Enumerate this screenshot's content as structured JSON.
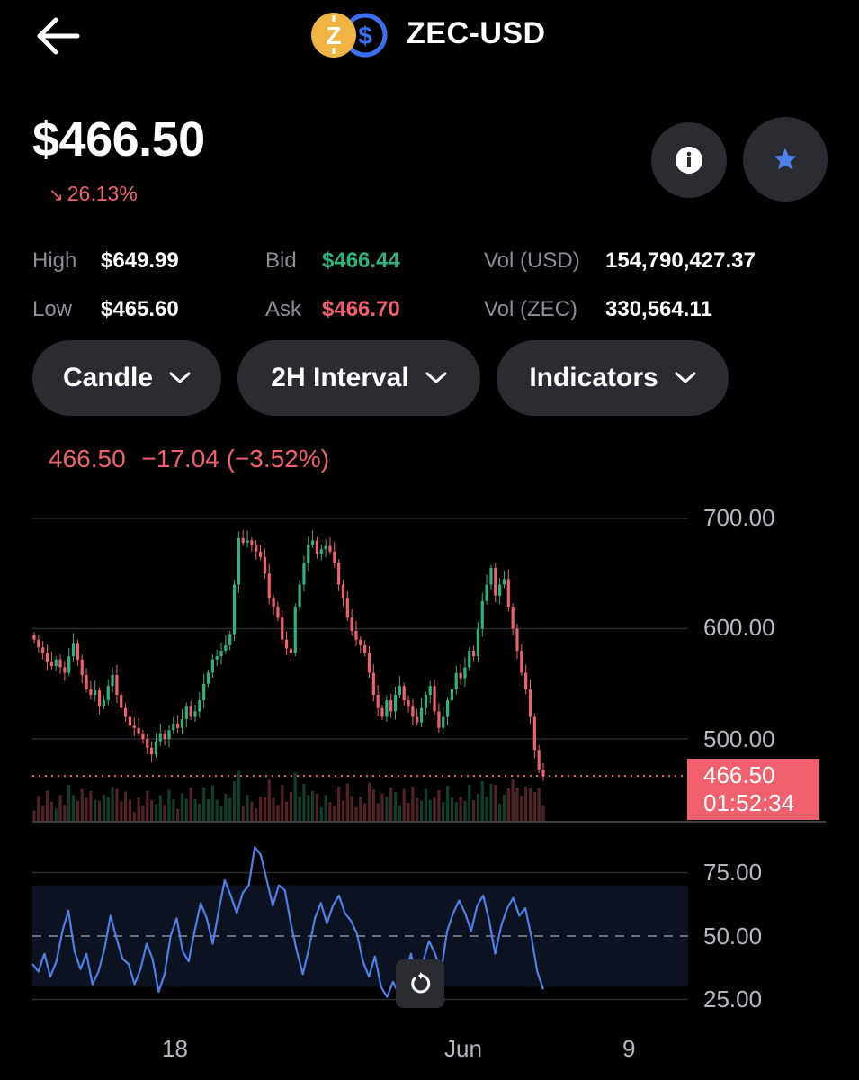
{
  "header": {
    "pair": "ZEC-USD",
    "base_icon": "zcash-coin-icon",
    "quote_icon": "usd-coin-icon"
  },
  "price": {
    "value": "$466.50",
    "change": "26.13%",
    "change_direction": "down"
  },
  "stats": {
    "high_label": "High",
    "high": "$649.99",
    "low_label": "Low",
    "low": "$465.60",
    "bid_label": "Bid",
    "bid": "$466.44",
    "ask_label": "Ask",
    "ask": "$466.70",
    "vol_usd_label": "Vol (USD)",
    "vol_usd": "154,790,427.37",
    "vol_zec_label": "Vol (ZEC)",
    "vol_zec": "330,564.11"
  },
  "controls": {
    "chart_type": "Candle",
    "interval": "2H Interval",
    "indicators": "Indicators"
  },
  "chart_header": {
    "last": "466.50",
    "change": "−17.04 (−3.52%)"
  },
  "price_tag": {
    "price": "466.50",
    "countdown": "01:52:34"
  },
  "colors": {
    "up": "#2fb37d",
    "down": "#f0616d",
    "rsi": "#4f7fe8",
    "accent_star": "#4f7fe8"
  },
  "chart_data": [
    {
      "type": "candlestick",
      "y_ticks": [
        "700.00",
        "600.00",
        "500.00"
      ],
      "ylim": [
        430,
        720
      ],
      "x_ticks": [
        "18",
        "Jun",
        "9"
      ],
      "last_price": 466.5,
      "close": [
        590,
        583,
        578,
        570,
        566,
        572,
        565,
        560,
        575,
        587,
        572,
        558,
        545,
        540,
        544,
        530,
        535,
        548,
        558,
        540,
        528,
        520,
        512,
        510,
        505,
        500,
        492,
        486,
        498,
        505,
        500,
        508,
        514,
        510,
        518,
        530,
        520,
        525,
        535,
        550,
        560,
        572,
        575,
        580,
        585,
        595,
        640,
        682,
        678,
        680,
        676,
        670,
        665,
        650,
        628,
        620,
        610,
        590,
        582,
        578,
        620,
        640,
        660,
        676,
        680,
        668,
        672,
        675,
        670,
        660,
        640,
        628,
        610,
        598,
        590,
        585,
        578,
        560,
        540,
        528,
        520,
        535,
        525,
        540,
        548,
        535,
        530,
        520,
        515,
        528,
        540,
        548,
        525,
        510,
        520,
        535,
        545,
        560,
        555,
        565,
        580,
        575,
        600,
        625,
        640,
        655,
        630,
        640,
        645,
        620,
        600,
        580,
        560,
        545,
        520,
        490,
        472,
        466.5
      ]
    },
    {
      "type": "line",
      "name": "RSI",
      "y_ticks": [
        "75.00",
        "50.00",
        "25.00"
      ],
      "ylim": [
        20,
        90
      ],
      "band": [
        30,
        70
      ],
      "values": [
        39,
        36,
        43,
        34,
        40,
        52,
        60,
        44,
        37,
        43,
        31,
        36,
        45,
        58,
        49,
        41,
        39,
        31,
        37,
        47,
        41,
        28,
        35,
        50,
        57,
        44,
        40,
        52,
        63,
        57,
        47,
        60,
        72,
        66,
        59,
        67,
        70,
        85,
        82,
        72,
        62,
        70,
        68,
        55,
        44,
        35,
        45,
        57,
        63,
        55,
        62,
        66,
        59,
        56,
        51,
        40,
        34,
        42,
        30,
        26,
        32,
        27,
        35,
        43,
        30,
        40,
        48,
        43,
        36,
        52,
        59,
        64,
        59,
        52,
        62,
        66,
        56,
        43,
        54,
        61,
        65,
        58,
        61,
        50,
        36,
        29
      ]
    }
  ]
}
